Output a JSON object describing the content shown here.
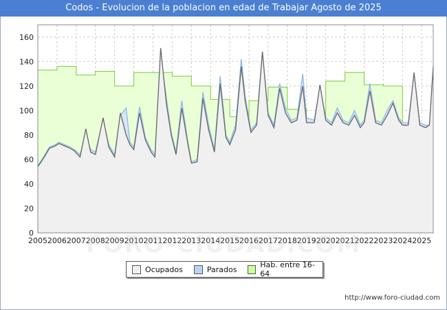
{
  "title": "Codos - Evolucion de la poblacion en edad de Trabajar Agosto de 2025",
  "footer_url": "http://www.foro-ciudad.com",
  "watermark": "FORO-CIUDAD.COM",
  "legend": [
    {
      "label": "Ocupados",
      "color": "#f0f0f0"
    },
    {
      "label": "Parados",
      "color": "#b8d4f4"
    },
    {
      "label": "Hab. entre 16-64",
      "color": "#ccff99"
    }
  ],
  "colors": {
    "ocupados_fill": "#f0f0f0",
    "ocupados_line": "#666666",
    "parados_line": "#8cb8e8",
    "hab_fill": "#eaffd6",
    "hab_line": "#7acc3a",
    "title_bg": "#4a7fd1"
  },
  "chart_data": {
    "type": "area",
    "title": "Codos - Evolucion de la poblacion en edad de Trabajar Agosto de 2025",
    "xlabel": "",
    "ylabel": "",
    "xlim": [
      2005,
      2025.6
    ],
    "ylim": [
      0,
      170
    ],
    "yticks": [
      0,
      20,
      40,
      60,
      80,
      100,
      120,
      140,
      160
    ],
    "xticks": [
      2005,
      2006,
      2007,
      2008,
      2009,
      2010,
      2011,
      2012,
      2013,
      2014,
      2015,
      2016,
      2017,
      2018,
      2019,
      2020,
      2021,
      2022,
      2023,
      2024,
      2025
    ],
    "grid": true,
    "legend_position": "bottom",
    "series": [
      {
        "name": "Hab. entre 16-64",
        "x": [
          2005,
          2006,
          2007,
          2008,
          2009,
          2010,
          2011,
          2012,
          2013,
          2014,
          2015,
          2016,
          2017,
          2018,
          2019,
          2020,
          2021,
          2022,
          2023,
          2024,
          2025
        ],
        "values": [
          133,
          136,
          129,
          132,
          120,
          131,
          131,
          128,
          120,
          109,
          95,
          108,
          119,
          101,
          91,
          124,
          131,
          121,
          120,
          88,
          88
        ]
      },
      {
        "name": "Parados",
        "x": [
          2005.0,
          2005.3,
          2005.6,
          2005.9,
          2006.1,
          2006.4,
          2006.7,
          2006.9,
          2007.2,
          2007.5,
          2007.75,
          2008.0,
          2008.4,
          2008.7,
          2009.0,
          2009.3,
          2009.6,
          2009.8,
          2010.0,
          2010.3,
          2010.6,
          2010.9,
          2011.1,
          2011.4,
          2011.7,
          2011.95,
          2012.2,
          2012.5,
          2012.8,
          2013.0,
          2013.3,
          2013.6,
          2013.9,
          2014.2,
          2014.5,
          2014.8,
          2015.0,
          2015.3,
          2015.6,
          2015.8,
          2016.1,
          2016.4,
          2016.7,
          2017.0,
          2017.3,
          2017.6,
          2017.9,
          2018.2,
          2018.5,
          2018.8,
          2019.0,
          2019.4,
          2019.7,
          2020.0,
          2020.3,
          2020.6,
          2020.9,
          2021.2,
          2021.5,
          2021.8,
          2022.0,
          2022.3,
          2022.6,
          2022.9,
          2023.2,
          2023.5,
          2023.8,
          2024.0,
          2024.3,
          2024.6,
          2024.9,
          2025.2,
          2025.4,
          2025.6
        ],
        "values": [
          55,
          62,
          70,
          72,
          74,
          72,
          70,
          68,
          64,
          80,
          68,
          66,
          92,
          72,
          64,
          96,
          102,
          74,
          70,
          103,
          78,
          68,
          64,
          145,
          110,
          82,
          66,
          108,
          76,
          58,
          60,
          115,
          88,
          68,
          128,
          80,
          74,
          88,
          142,
          112,
          84,
          90,
          148,
          98,
          88,
          122,
          102,
          92,
          94,
          130,
          94,
          92,
          120,
          94,
          90,
          102,
          92,
          90,
          100,
          88,
          92,
          122,
          92,
          90,
          100,
          108,
          94,
          90,
          90,
          130,
          90,
          88,
          88,
          136
        ]
      },
      {
        "name": "Ocupados",
        "x": [
          2005.0,
          2005.3,
          2005.6,
          2005.9,
          2006.1,
          2006.4,
          2006.7,
          2006.9,
          2007.2,
          2007.5,
          2007.75,
          2008.0,
          2008.4,
          2008.7,
          2009.0,
          2009.3,
          2009.6,
          2009.8,
          2010.0,
          2010.3,
          2010.6,
          2010.9,
          2011.1,
          2011.4,
          2011.7,
          2011.95,
          2012.2,
          2012.5,
          2012.8,
          2013.0,
          2013.3,
          2013.6,
          2013.9,
          2014.2,
          2014.5,
          2014.8,
          2015.0,
          2015.3,
          2015.6,
          2015.8,
          2016.1,
          2016.4,
          2016.7,
          2017.0,
          2017.3,
          2017.6,
          2017.9,
          2018.2,
          2018.5,
          2018.8,
          2019.0,
          2019.4,
          2019.7,
          2020.0,
          2020.3,
          2020.6,
          2020.9,
          2021.2,
          2021.5,
          2021.8,
          2022.0,
          2022.3,
          2022.6,
          2022.9,
          2023.2,
          2023.5,
          2023.8,
          2024.0,
          2024.3,
          2024.6,
          2024.9,
          2025.2,
          2025.4,
          2025.6
        ],
        "values": [
          54,
          61,
          69,
          71,
          73,
          71,
          69,
          67,
          62,
          85,
          66,
          64,
          94,
          70,
          62,
          98,
          80,
          72,
          68,
          98,
          76,
          66,
          62,
          151,
          105,
          80,
          64,
          102,
          74,
          57,
          58,
          110,
          84,
          66,
          122,
          78,
          72,
          84,
          136,
          108,
          82,
          88,
          148,
          96,
          86,
          118,
          98,
          90,
          92,
          120,
          90,
          90,
          121,
          92,
          88,
          98,
          90,
          88,
          96,
          86,
          90,
          116,
          90,
          88,
          96,
          106,
          92,
          88,
          88,
          131,
          88,
          86,
          88,
          136
        ]
      }
    ]
  }
}
